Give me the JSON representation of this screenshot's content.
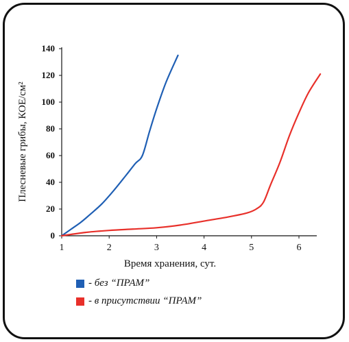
{
  "chart_data": {
    "type": "line",
    "xlabel": "Время хранения, сут.",
    "ylabel": "Плесневые грибы, КОЕ/см²",
    "xlim": [
      1,
      6.45
    ],
    "ylim": [
      0,
      140
    ],
    "x_ticks": [
      "1",
      "2",
      "3",
      "4",
      "5",
      "6"
    ],
    "y_ticks": [
      "0",
      "20",
      "40",
      "60",
      "80",
      "100",
      "120",
      "140"
    ],
    "grid": false,
    "legend_position": "bottom-left",
    "series": [
      {
        "name": "- без “ПРАМ”",
        "color": "#1f5fb4",
        "points": [
          [
            1,
            0
          ],
          [
            1.2,
            5
          ],
          [
            1.4,
            10
          ],
          [
            1.6,
            16
          ],
          [
            1.85,
            24
          ],
          [
            2.1,
            34
          ],
          [
            2.35,
            45
          ],
          [
            2.55,
            54
          ],
          [
            2.7,
            60
          ],
          [
            2.85,
            78
          ],
          [
            3.0,
            95
          ],
          [
            3.2,
            115
          ],
          [
            3.45,
            135
          ]
        ]
      },
      {
        "name": "- в присутствии “ПРАМ”",
        "color": "#e8302a",
        "points": [
          [
            1,
            0
          ],
          [
            1.5,
            2.5
          ],
          [
            2,
            4
          ],
          [
            2.5,
            5
          ],
          [
            3,
            6
          ],
          [
            3.5,
            8
          ],
          [
            4,
            11
          ],
          [
            4.5,
            14
          ],
          [
            4.9,
            17
          ],
          [
            5.1,
            20
          ],
          [
            5.25,
            25
          ],
          [
            5.4,
            38
          ],
          [
            5.6,
            55
          ],
          [
            5.8,
            75
          ],
          [
            6.0,
            92
          ],
          [
            6.2,
            107
          ],
          [
            6.45,
            121
          ]
        ]
      }
    ]
  }
}
